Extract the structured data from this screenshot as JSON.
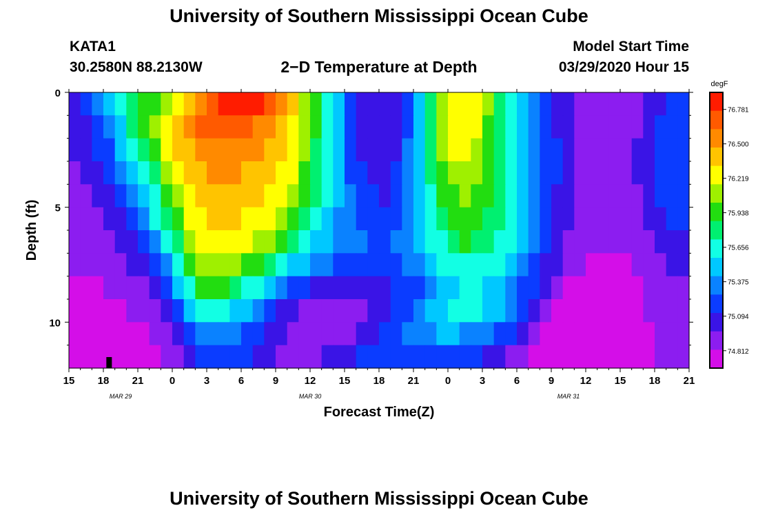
{
  "header": {
    "title": "University of Southern Mississippi Ocean Cube",
    "station": "KATA1",
    "location": "30.2580N 88.2130W",
    "subtitle": "2−D Temperature at Depth",
    "start_label": "Model Start Time",
    "start_value": "03/29/2020 Hour 15"
  },
  "footer": {
    "title": "University of Southern Mississippi Ocean Cube"
  },
  "chart_data": {
    "type": "heatmap",
    "title": "2−D Temperature at Depth",
    "xlabel": "Forecast Time(Z)",
    "ylabel": "Depth (ft)",
    "x_range_hours": [
      0,
      54
    ],
    "y_range_ft": [
      0,
      12
    ],
    "y_inverted": true,
    "x_ticks": [
      {
        "hour": 0,
        "label": "15"
      },
      {
        "hour": 3,
        "label": "18"
      },
      {
        "hour": 6,
        "label": "21"
      },
      {
        "hour": 9,
        "label": "0"
      },
      {
        "hour": 12,
        "label": "3"
      },
      {
        "hour": 15,
        "label": "6"
      },
      {
        "hour": 18,
        "label": "9"
      },
      {
        "hour": 21,
        "label": "12"
      },
      {
        "hour": 24,
        "label": "15"
      },
      {
        "hour": 27,
        "label": "18"
      },
      {
        "hour": 30,
        "label": "21"
      },
      {
        "hour": 33,
        "label": "0"
      },
      {
        "hour": 36,
        "label": "3"
      },
      {
        "hour": 39,
        "label": "6"
      },
      {
        "hour": 42,
        "label": "9"
      },
      {
        "hour": 45,
        "label": "12"
      },
      {
        "hour": 48,
        "label": "15"
      },
      {
        "hour": 51,
        "label": "18"
      },
      {
        "hour": 54,
        "label": "21"
      }
    ],
    "date_labels": [
      {
        "hour": 4.5,
        "label": "MAR 29"
      },
      {
        "hour": 21,
        "label": "MAR 30"
      },
      {
        "hour": 43.5,
        "label": "MAR 31"
      }
    ],
    "y_ticks": [
      {
        "depth": 0,
        "label": "0"
      },
      {
        "depth": 5,
        "label": "5"
      },
      {
        "depth": 10,
        "label": "10"
      }
    ],
    "colorbar": {
      "unit": "degF",
      "min": 74.67,
      "max": 76.92,
      "ticks": [
        "76.781",
        "76.500",
        "76.219",
        "75.938",
        "75.656",
        "75.375",
        "75.094",
        "74.812"
      ]
    },
    "colors": {
      "c0": "#d40ee8",
      "c1": "#8c1df0",
      "c2": "#3a14e6",
      "c3": "#0b3cff",
      "c4": "#0a82ff",
      "c5": "#00c8ff",
      "c6": "#12ffe4",
      "c7": "#00f070",
      "c8": "#22dd10",
      "c9": "#9ff000",
      "c10": "#ffff00",
      "c11": "#ffc400",
      "c12": "#ff8a00",
      "c13": "#ff5a00",
      "c14": "#ff1c00"
    },
    "marker_hour": 3.5,
    "time_columns": 54,
    "depth_rows": 12,
    "temperature_degF": [
      [
        75.01,
        75.18,
        75.32,
        75.48,
        75.62,
        75.74,
        75.88,
        76.02,
        76.16,
        76.3,
        76.46,
        76.6,
        76.74,
        76.84,
        76.86,
        76.84,
        76.78,
        76.68,
        76.54,
        76.36,
        76.14,
        75.9,
        75.66,
        75.44,
        75.24,
        75.08,
        75.0,
        74.98,
        75.08,
        75.26,
        75.5,
        75.78,
        76.04,
        76.24,
        76.3,
        76.22,
        76.04,
        75.82,
        75.6,
        75.42,
        75.28,
        75.18,
        75.08,
        74.98,
        74.92,
        74.9,
        74.88,
        74.88,
        74.9,
        74.94,
        75.0,
        75.08,
        75.12,
        75.14
      ],
      [
        75.01,
        75.08,
        75.22,
        75.38,
        75.56,
        75.74,
        75.92,
        76.08,
        76.26,
        76.42,
        76.56,
        76.64,
        76.7,
        76.72,
        76.7,
        76.66,
        76.6,
        76.54,
        76.46,
        76.32,
        76.12,
        75.9,
        75.66,
        75.44,
        75.24,
        75.08,
        75.0,
        74.98,
        75.08,
        75.26,
        75.5,
        75.78,
        76.06,
        76.26,
        76.3,
        76.2,
        76.02,
        75.8,
        75.6,
        75.44,
        75.3,
        75.2,
        75.1,
        75.0,
        74.94,
        74.92,
        74.9,
        74.9,
        74.92,
        74.96,
        75.04,
        75.12,
        75.16,
        75.18
      ],
      [
        74.98,
        75.04,
        75.12,
        75.26,
        75.42,
        75.6,
        75.8,
        76.0,
        76.18,
        76.34,
        76.46,
        76.54,
        76.58,
        76.58,
        76.56,
        76.54,
        76.5,
        76.46,
        76.38,
        76.26,
        76.08,
        75.86,
        75.64,
        75.42,
        75.24,
        75.1,
        75.02,
        75.0,
        75.1,
        75.28,
        75.52,
        75.78,
        76.04,
        76.22,
        76.24,
        76.16,
        76.0,
        75.8,
        75.62,
        75.46,
        75.32,
        75.22,
        75.12,
        75.02,
        74.96,
        74.94,
        74.92,
        74.92,
        74.94,
        74.98,
        75.06,
        75.14,
        75.18,
        75.2
      ],
      [
        74.94,
        75.0,
        75.06,
        75.16,
        75.3,
        75.48,
        75.66,
        75.86,
        76.06,
        76.24,
        76.38,
        76.46,
        76.5,
        76.5,
        76.48,
        76.46,
        76.42,
        76.38,
        76.3,
        76.18,
        76.02,
        75.82,
        75.62,
        75.42,
        75.26,
        75.14,
        75.06,
        75.04,
        75.12,
        75.28,
        75.5,
        75.74,
        75.96,
        76.12,
        76.14,
        76.08,
        75.94,
        75.78,
        75.62,
        75.48,
        75.34,
        75.22,
        75.12,
        75.02,
        74.96,
        74.94,
        74.92,
        74.92,
        74.94,
        74.98,
        75.06,
        75.14,
        75.18,
        75.2
      ],
      [
        74.92,
        74.96,
        75.02,
        75.08,
        75.2,
        75.34,
        75.52,
        75.72,
        75.94,
        76.14,
        76.3,
        76.4,
        76.44,
        76.44,
        76.42,
        76.4,
        76.36,
        76.3,
        76.22,
        76.1,
        75.94,
        75.76,
        75.58,
        75.42,
        75.28,
        75.18,
        75.12,
        75.1,
        75.16,
        75.3,
        75.48,
        75.68,
        75.88,
        76.02,
        76.04,
        76.0,
        75.9,
        75.76,
        75.62,
        75.48,
        75.34,
        75.22,
        75.1,
        75.0,
        74.94,
        74.92,
        74.9,
        74.9,
        74.92,
        74.96,
        75.04,
        75.12,
        75.16,
        75.18
      ],
      [
        74.88,
        74.92,
        74.96,
        75.02,
        75.1,
        75.22,
        75.38,
        75.58,
        75.8,
        76.02,
        76.2,
        76.32,
        76.36,
        76.36,
        76.34,
        76.32,
        76.26,
        76.18,
        76.08,
        75.96,
        75.82,
        75.66,
        75.52,
        75.4,
        75.3,
        75.22,
        75.18,
        75.16,
        75.2,
        75.3,
        75.44,
        75.62,
        75.8,
        75.92,
        75.96,
        75.94,
        75.86,
        75.74,
        75.62,
        75.48,
        75.34,
        75.2,
        75.08,
        74.98,
        74.92,
        74.9,
        74.88,
        74.88,
        74.9,
        74.94,
        75.02,
        75.1,
        75.14,
        75.16
      ],
      [
        74.86,
        74.88,
        74.9,
        74.94,
        75.0,
        75.08,
        75.2,
        75.38,
        75.6,
        75.84,
        76.06,
        76.22,
        76.28,
        76.28,
        76.26,
        76.22,
        76.14,
        76.04,
        75.92,
        75.8,
        75.68,
        75.56,
        75.46,
        75.38,
        75.32,
        75.28,
        75.26,
        75.26,
        75.28,
        75.34,
        75.44,
        75.58,
        75.72,
        75.84,
        75.88,
        75.86,
        75.8,
        75.7,
        75.58,
        75.46,
        75.32,
        75.18,
        75.06,
        74.96,
        74.9,
        74.86,
        74.84,
        74.84,
        74.86,
        74.9,
        74.96,
        75.04,
        75.08,
        75.1
      ],
      [
        74.84,
        74.84,
        74.86,
        74.88,
        74.92,
        74.98,
        75.06,
        75.2,
        75.4,
        75.64,
        75.88,
        76.08,
        76.16,
        76.14,
        76.08,
        75.98,
        75.88,
        75.76,
        75.64,
        75.52,
        75.42,
        75.34,
        75.28,
        75.24,
        75.22,
        75.22,
        75.22,
        75.22,
        75.24,
        75.28,
        75.36,
        75.46,
        75.58,
        75.68,
        75.72,
        75.72,
        75.68,
        75.6,
        75.5,
        75.38,
        75.24,
        75.1,
        74.98,
        74.9,
        74.84,
        74.8,
        74.78,
        74.78,
        74.8,
        74.84,
        74.9,
        74.96,
        75.0,
        75.02
      ],
      [
        74.82,
        74.82,
        74.82,
        74.84,
        74.86,
        74.9,
        74.96,
        75.06,
        75.22,
        75.44,
        75.68,
        75.88,
        75.96,
        75.92,
        75.82,
        75.7,
        75.58,
        75.46,
        75.34,
        75.24,
        75.16,
        75.1,
        75.06,
        75.04,
        75.04,
        75.04,
        75.06,
        75.08,
        75.12,
        75.18,
        75.26,
        75.36,
        75.46,
        75.56,
        75.6,
        75.6,
        75.56,
        75.48,
        75.38,
        75.26,
        75.12,
        75.0,
        74.9,
        74.82,
        74.78,
        74.76,
        74.76,
        74.76,
        74.78,
        74.8,
        74.84,
        74.9,
        74.94,
        74.96
      ],
      [
        74.8,
        74.8,
        74.8,
        74.8,
        74.82,
        74.84,
        74.88,
        74.96,
        75.08,
        75.26,
        75.46,
        75.62,
        75.68,
        75.64,
        75.54,
        75.42,
        75.3,
        75.18,
        75.08,
        75.0,
        74.94,
        74.9,
        74.88,
        74.88,
        74.9,
        74.94,
        74.98,
        75.04,
        75.12,
        75.22,
        75.32,
        75.42,
        75.52,
        75.58,
        75.6,
        75.58,
        75.52,
        75.42,
        75.3,
        75.16,
        75.02,
        74.9,
        74.8,
        74.74,
        74.72,
        74.72,
        74.72,
        74.74,
        74.76,
        74.8,
        74.84,
        74.9,
        74.94,
        74.96
      ],
      [
        74.78,
        74.78,
        74.78,
        74.78,
        74.78,
        74.8,
        74.82,
        74.88,
        74.96,
        75.08,
        75.22,
        75.34,
        75.4,
        75.4,
        75.34,
        75.26,
        75.16,
        75.06,
        74.98,
        74.92,
        74.88,
        74.86,
        74.86,
        74.88,
        74.92,
        74.98,
        75.06,
        75.14,
        75.22,
        75.3,
        75.36,
        75.4,
        75.42,
        75.42,
        75.4,
        75.36,
        75.3,
        75.22,
        75.12,
        75.0,
        74.88,
        74.78,
        74.72,
        74.7,
        74.7,
        74.7,
        74.72,
        74.74,
        74.76,
        74.78,
        74.82,
        74.86,
        74.9,
        74.92
      ],
      [
        74.76,
        74.76,
        74.76,
        74.76,
        74.76,
        74.76,
        74.78,
        74.82,
        74.88,
        74.96,
        75.06,
        75.16,
        75.22,
        75.22,
        75.18,
        75.12,
        75.04,
        74.98,
        74.94,
        74.92,
        74.92,
        74.94,
        74.98,
        75.02,
        75.08,
        75.14,
        75.2,
        75.24,
        75.26,
        75.26,
        75.24,
        75.22,
        75.2,
        75.18,
        75.16,
        75.12,
        75.08,
        75.02,
        74.96,
        74.88,
        74.8,
        74.74,
        74.7,
        74.7,
        74.7,
        74.72,
        74.74,
        74.76,
        74.78,
        74.8,
        74.82,
        74.84,
        74.86,
        74.88
      ]
    ]
  }
}
